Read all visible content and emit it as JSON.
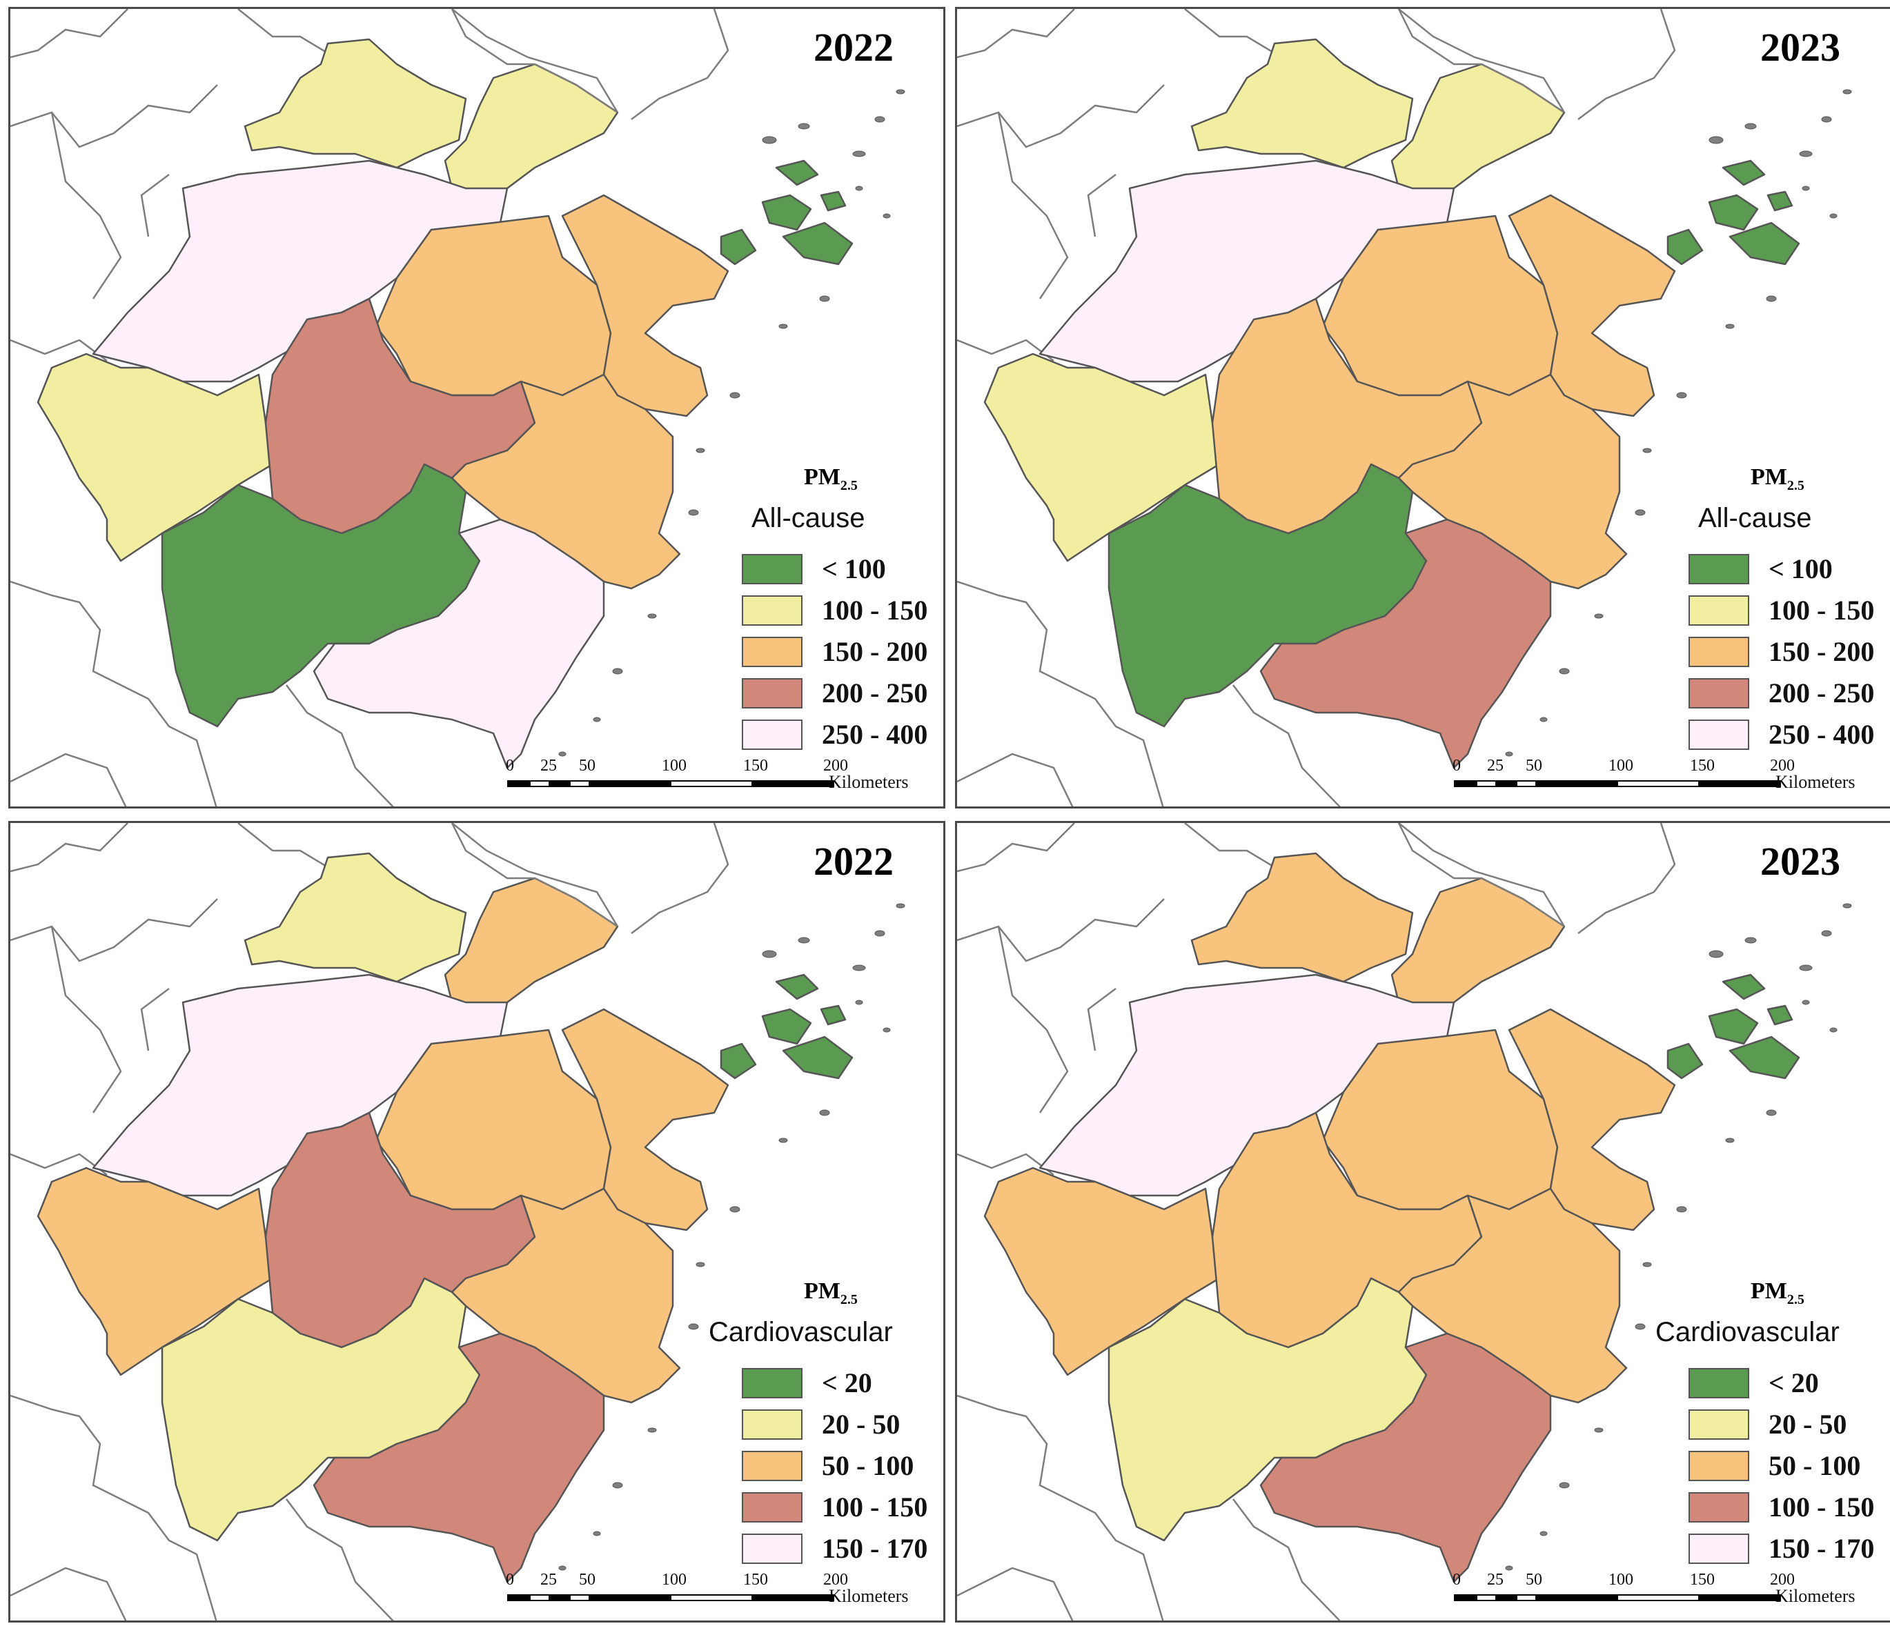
{
  "colors": {
    "green": "#5b9a51",
    "yellow": "#f1eda1",
    "orange": "#f8c47d",
    "red": "#d1877a",
    "pink": "#fdf0fb"
  },
  "pm_label": "PM",
  "pm_sub": "2.5",
  "scale": {
    "ticks": [
      "0",
      "25",
      "50",
      "100",
      "150",
      "200"
    ],
    "unit": "Kilometers"
  },
  "panels": [
    {
      "year": "2022",
      "cause": "All-cause",
      "legend": [
        "< 100",
        "100 - 150",
        "150 - 200",
        "200 - 250",
        "250 - 400"
      ],
      "regions": {
        "huzhou": "yellow",
        "jiaxing": "yellow",
        "hangzhou": "pink",
        "shaoxing": "orange",
        "ningbo": "orange",
        "quzhou": "yellow",
        "jinhua": "red",
        "taizhou": "orange",
        "lishui": "green",
        "wenzhou": "pink",
        "zhoushan": "green"
      }
    },
    {
      "year": "2023",
      "cause": "All-cause",
      "legend": [
        "< 100",
        "100 - 150",
        "150 - 200",
        "200 - 250",
        "250 - 400"
      ],
      "regions": {
        "huzhou": "yellow",
        "jiaxing": "yellow",
        "hangzhou": "pink",
        "shaoxing": "orange",
        "ningbo": "orange",
        "quzhou": "yellow",
        "jinhua": "orange",
        "taizhou": "orange",
        "lishui": "green",
        "wenzhou": "red",
        "zhoushan": "green"
      }
    },
    {
      "year": "2022",
      "cause": "Cardiovascular",
      "legend": [
        "< 20",
        "20 - 50",
        "50 - 100",
        "100 - 150",
        "150 - 170"
      ],
      "regions": {
        "huzhou": "yellow",
        "jiaxing": "orange",
        "hangzhou": "pink",
        "shaoxing": "orange",
        "ningbo": "orange",
        "quzhou": "orange",
        "jinhua": "red",
        "taizhou": "orange",
        "lishui": "yellow",
        "wenzhou": "red",
        "zhoushan": "green"
      }
    },
    {
      "year": "2023",
      "cause": "Cardiovascular",
      "legend": [
        "< 20",
        "20 - 50",
        "50 - 100",
        "100 - 150",
        "150 - 170"
      ],
      "regions": {
        "huzhou": "orange",
        "jiaxing": "orange",
        "hangzhou": "pink",
        "shaoxing": "orange",
        "ningbo": "orange",
        "quzhou": "orange",
        "jinhua": "orange",
        "taizhou": "orange",
        "lishui": "yellow",
        "wenzhou": "red",
        "zhoushan": "green"
      }
    }
  ]
}
